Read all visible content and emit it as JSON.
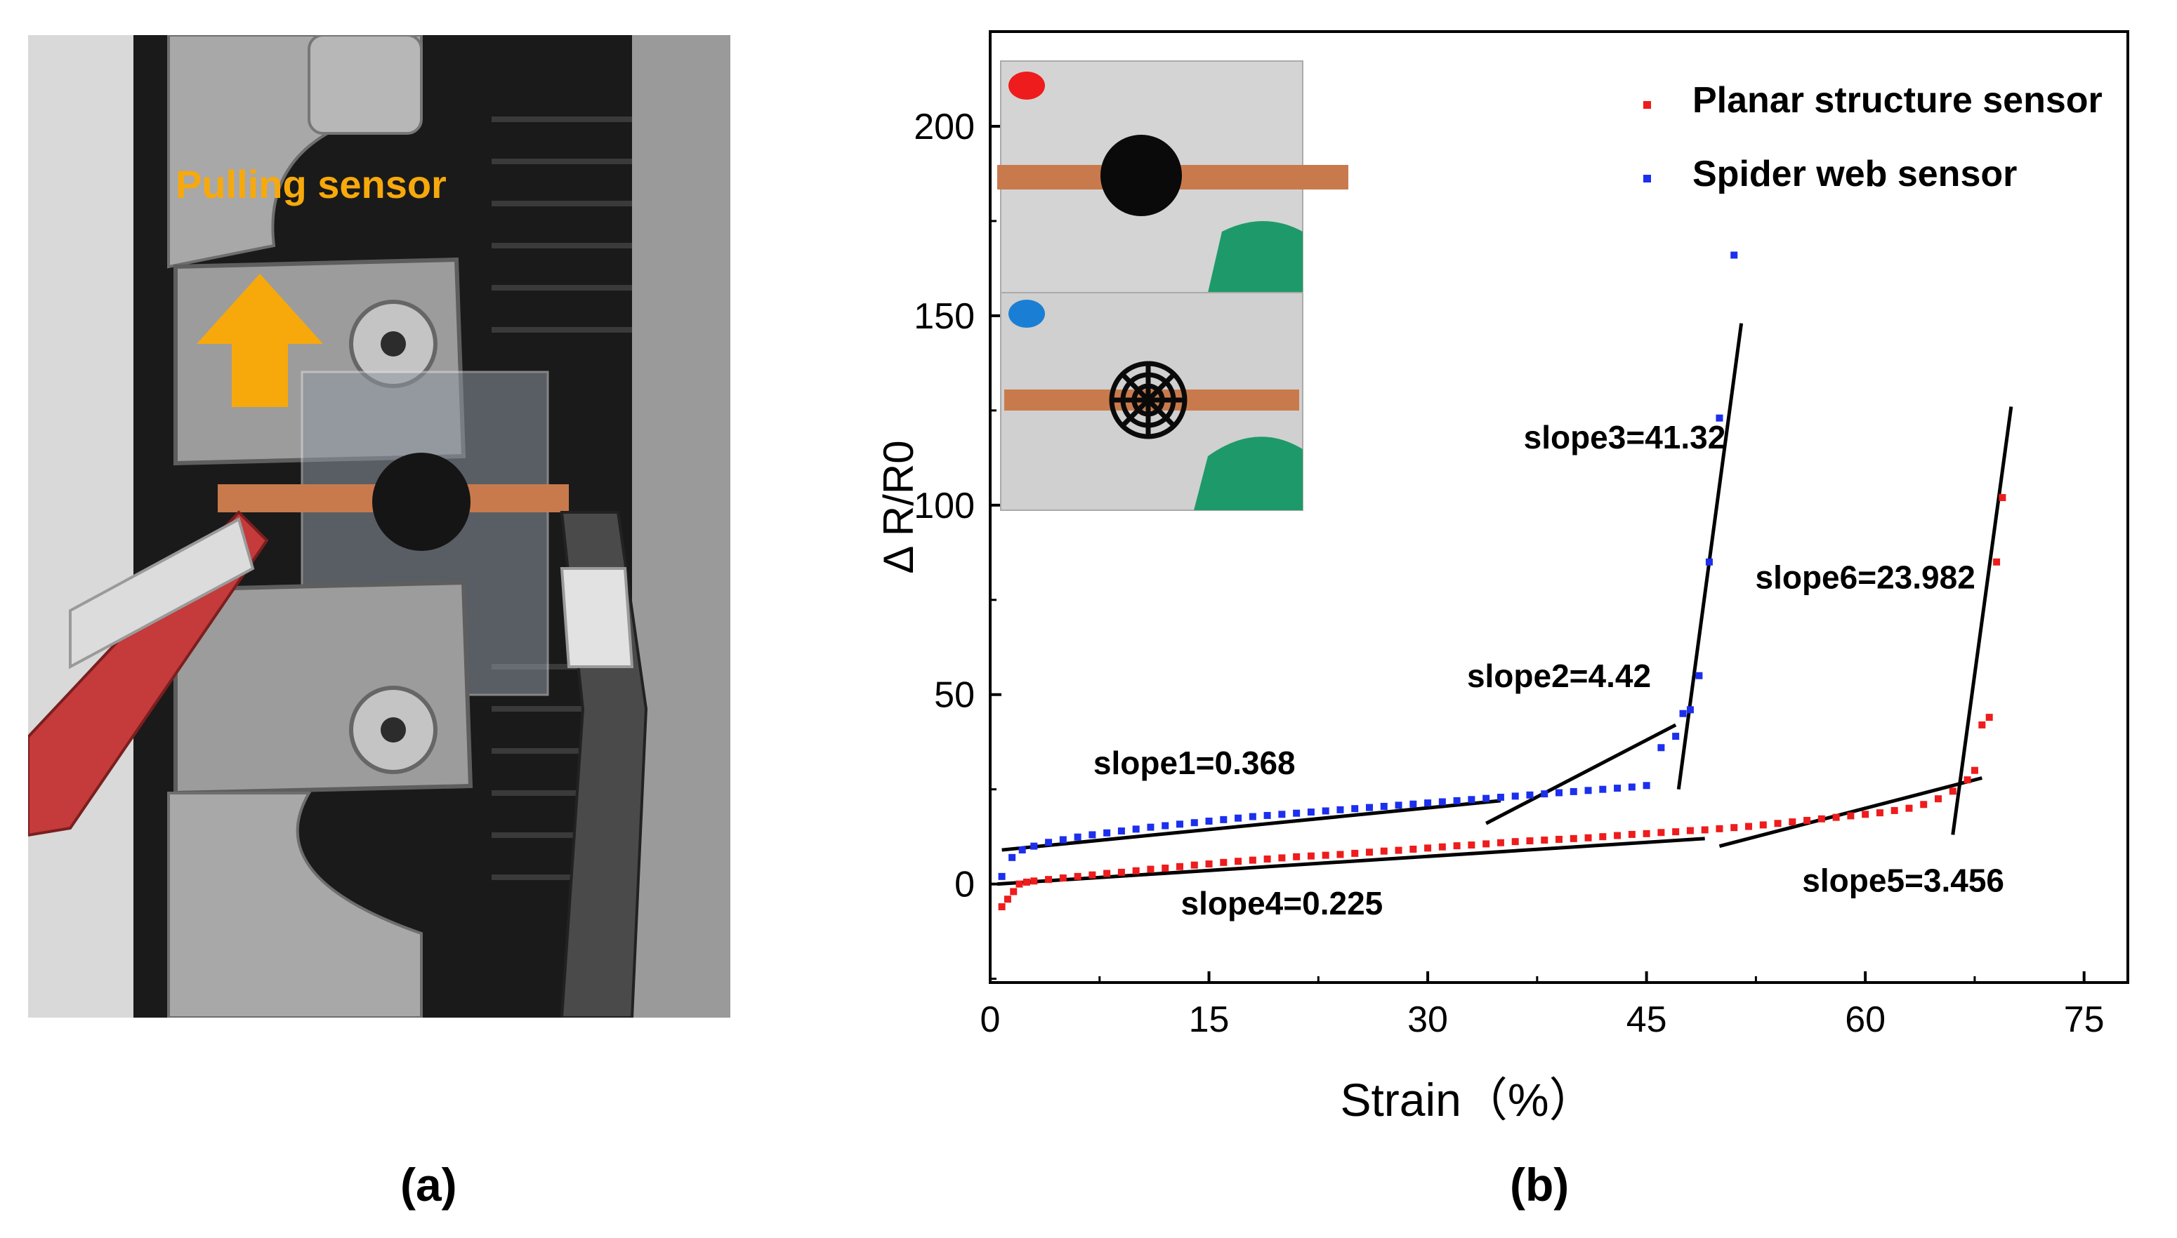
{
  "panel_a": {
    "label": "(a)",
    "annotation": "Pulling sensor"
  },
  "panel_b": {
    "label": "(b)"
  },
  "colors": {
    "planar": "#ee1c1c",
    "spider": "#1c2fee",
    "arrow": "#f7a90c",
    "annotation_text": "#f7a90c"
  },
  "chart_data": {
    "type": "scatter",
    "title": "",
    "xlabel": "Strain（%）",
    "ylabel": "Δ R/R0",
    "xlim": [
      0,
      78
    ],
    "ylim": [
      -26,
      225
    ],
    "xticks": [
      0,
      15,
      30,
      45,
      60,
      75
    ],
    "yticks": [
      0,
      50,
      100,
      150,
      200
    ],
    "legend_position": "top-right",
    "series": [
      {
        "name": "Planar structure sensor",
        "color": "#ee1c1c",
        "x": [
          0.8,
          1.2,
          1.6,
          2.0,
          2.5,
          3.0,
          4,
          5,
          6,
          7,
          8,
          9,
          10,
          11,
          12,
          13,
          14,
          15,
          16,
          17,
          18,
          19,
          20,
          21,
          22,
          23,
          24,
          25,
          26,
          27,
          28,
          29,
          30,
          31,
          32,
          33,
          34,
          35,
          36,
          37,
          38,
          39,
          40,
          41,
          42,
          43,
          44,
          45,
          46,
          47,
          48,
          49,
          50,
          51,
          52,
          53,
          54,
          55,
          56,
          57,
          58,
          59,
          60,
          61,
          62,
          63,
          64,
          65,
          66,
          67,
          67.5,
          68.0,
          68.5,
          69.0,
          69.4
        ],
        "y": [
          -6,
          -4,
          -2,
          0,
          0.5,
          0.8,
          1.2,
          1.6,
          2,
          2.4,
          2.8,
          3.1,
          3.5,
          3.9,
          4.2,
          4.6,
          5,
          5.3,
          5.7,
          6,
          6.3,
          6.6,
          6.9,
          7.2,
          7.4,
          7.6,
          7.8,
          8.1,
          8.4,
          8.7,
          8.9,
          9.2,
          9.5,
          9.8,
          10.1,
          10.3,
          10.6,
          10.9,
          11.2,
          11.4,
          11.6,
          11.8,
          12,
          12.2,
          12.5,
          12.8,
          13.1,
          13.3,
          13.6,
          13.8,
          14.1,
          14.3,
          14.6,
          14.9,
          15.2,
          15.6,
          16,
          16.4,
          16.8,
          17.2,
          17.6,
          18,
          18.4,
          18.8,
          19.4,
          20,
          21,
          22.5,
          24.5,
          27.5,
          30,
          42,
          44,
          85,
          102
        ]
      },
      {
        "name": "Spider web sensor",
        "color": "#1c2fee",
        "x": [
          0.8,
          1.5,
          2.2,
          3.0,
          4,
          5,
          6,
          7,
          8,
          9,
          10,
          11,
          12,
          13,
          14,
          15,
          16,
          17,
          18,
          19,
          20,
          21,
          22,
          23,
          24,
          25,
          26,
          27,
          28,
          29,
          30,
          31,
          32,
          33,
          34,
          35,
          36,
          37,
          38,
          39,
          40,
          41,
          42,
          43,
          44,
          45,
          46,
          47,
          47.5,
          48.0,
          48.6,
          49.3,
          50.0,
          51.0
        ],
        "y": [
          2,
          7,
          9,
          10,
          11,
          11.7,
          12.4,
          13,
          13.5,
          14,
          14.5,
          15,
          15.4,
          15.8,
          16.2,
          16.6,
          17,
          17.4,
          17.8,
          18.1,
          18.4,
          18.7,
          19,
          19.3,
          19.6,
          19.9,
          20.2,
          20.5,
          20.8,
          21.1,
          21.4,
          21.7,
          22,
          22.3,
          22.6,
          22.9,
          23.2,
          23.5,
          23.8,
          24.1,
          24.4,
          24.7,
          25,
          25.3,
          25.6,
          26,
          36,
          39,
          45,
          46,
          55,
          85,
          123,
          166
        ]
      }
    ],
    "fit_lines": [
      {
        "label": "slope1=0.368",
        "x": [
          0.8,
          35
        ],
        "y": [
          9,
          22
        ]
      },
      {
        "label": "slope2=4.42",
        "x": [
          34,
          47
        ],
        "y": [
          16,
          42
        ]
      },
      {
        "label": "slope3=41.32",
        "x": [
          47.2,
          51.5
        ],
        "y": [
          25,
          148
        ]
      },
      {
        "label": "slope4=0.225",
        "x": [
          0.5,
          49
        ],
        "y": [
          0,
          12
        ]
      },
      {
        "label": "slope5=3.456",
        "x": [
          50,
          68
        ],
        "y": [
          10,
          28
        ]
      },
      {
        "label": "slope6=23.982",
        "x": [
          66,
          70
        ],
        "y": [
          13,
          126
        ]
      }
    ],
    "annotations": [
      {
        "text": "slope1=0.368",
        "x": 14,
        "y": 29
      },
      {
        "text": "slope2=4.42",
        "x": 39,
        "y": 52
      },
      {
        "text": "slope3=41.32",
        "x": 43.5,
        "y": 115
      },
      {
        "text": "slope4=0.225",
        "x": 20,
        "y": -8
      },
      {
        "text": "slope5=3.456",
        "x": 62.6,
        "y": -2
      },
      {
        "text": "slope6=23.982",
        "x": 60,
        "y": 78
      }
    ]
  }
}
